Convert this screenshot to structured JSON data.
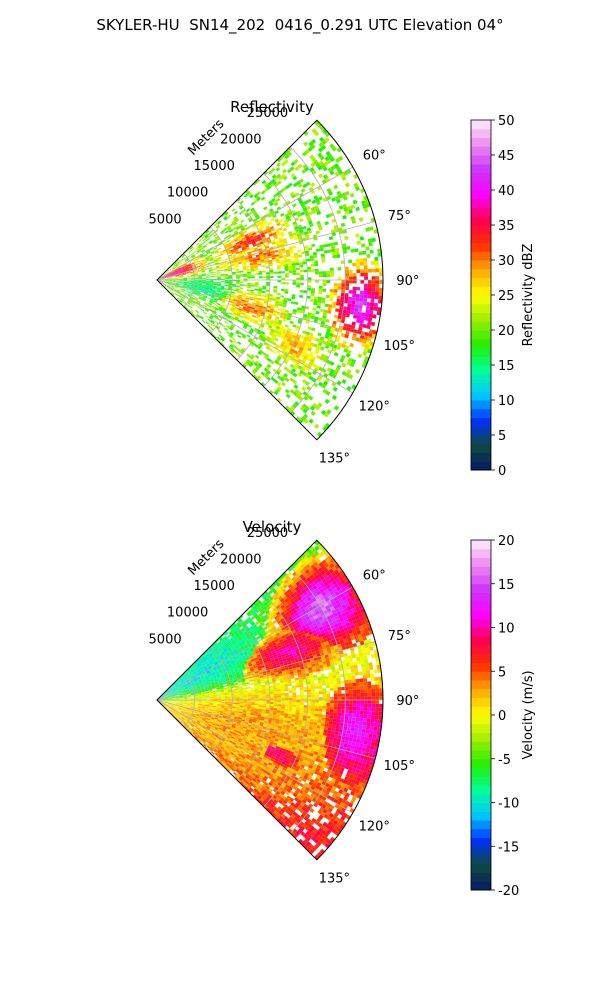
{
  "figure": {
    "title": "SKYLER-HU  SN14_202  0416_0.291 UTC Elevation 04°"
  },
  "colors": {
    "axis": "#000000",
    "grid": "#b0b0b0",
    "background": "#ffffff"
  },
  "chart_data": [
    {
      "type": "heatmap",
      "projection": "polar-sector",
      "title": "Reflectivity",
      "radial_label": "Meters",
      "radial_ticks": [
        5000,
        10000,
        15000,
        20000,
        25000
      ],
      "angle_ticks": [
        "60°",
        "75°",
        "90°",
        "105°",
        "120°",
        "135°"
      ],
      "angle_range_deg": [
        45,
        135
      ],
      "range_max_m": 30000,
      "grid": true,
      "colorbar": {
        "label": "Reflectivity dBZ",
        "ticks": [
          0,
          5,
          10,
          15,
          20,
          25,
          30,
          35,
          40,
          45,
          50
        ],
        "range": [
          0,
          50
        ],
        "colormap": [
          "#061a66",
          "#0f4a3e",
          "#0030ff",
          "#00c8ff",
          "#00ff9a",
          "#22ee00",
          "#99ee00",
          "#ffff00",
          "#ffaa00",
          "#ff3000",
          "#ff0050",
          "#ff00ff",
          "#cc33ff",
          "#ee88ee",
          "#ffeeff"
        ]
      },
      "features": [
        {
          "name": "near-range cluster",
          "azimuth_deg": [
            60,
            80
          ],
          "range_m": [
            0,
            5000
          ],
          "dbz": 38
        },
        {
          "name": "band north",
          "azimuth_deg": [
            63,
            72
          ],
          "range_m": [
            10000,
            17000
          ],
          "dbz": 33
        },
        {
          "name": "band center",
          "azimuth_deg": [
            72,
            82
          ],
          "range_m": [
            10000,
            18000
          ],
          "dbz": 30
        },
        {
          "name": "east cell",
          "azimuth_deg": [
            88,
            106
          ],
          "range_m": [
            25000,
            29500
          ],
          "dbz": 42
        },
        {
          "name": "south cell",
          "azimuth_deg": [
            100,
            112
          ],
          "range_m": [
            10000,
            16000
          ],
          "dbz": 30
        },
        {
          "name": "far south patch",
          "azimuth_deg": [
            112,
            120
          ],
          "range_m": [
            18000,
            23000
          ],
          "dbz": 28
        },
        {
          "name": "west area",
          "azimuth_deg": [
            90,
            110
          ],
          "range_m": [
            3000,
            9000
          ],
          "dbz": 15
        }
      ]
    },
    {
      "type": "heatmap",
      "projection": "polar-sector",
      "title": "Velocity",
      "radial_label": "Meters",
      "radial_ticks": [
        5000,
        10000,
        15000,
        20000,
        25000
      ],
      "angle_ticks": [
        "60°",
        "75°",
        "90°",
        "105°",
        "120°",
        "135°"
      ],
      "angle_range_deg": [
        45,
        135
      ],
      "range_max_m": 30000,
      "grid": true,
      "colorbar": {
        "label": "Velocity (m/s)",
        "ticks": [
          -20,
          -15,
          -10,
          -5,
          0,
          5,
          10,
          15,
          20
        ],
        "range": [
          -20,
          20
        ],
        "colormap": [
          "#061a66",
          "#0f4a3e",
          "#0030ff",
          "#00c8ff",
          "#00ff9a",
          "#22ee00",
          "#99ee00",
          "#ffff00",
          "#ffaa00",
          "#ff3000",
          "#ff0050",
          "#ff00ff",
          "#cc33ff",
          "#ee88ee",
          "#ffeeff"
        ]
      },
      "features": [
        {
          "name": "inbound near north",
          "azimuth_deg": [
            45,
            75
          ],
          "range_m": [
            0,
            14000
          ],
          "velocity_ms": -10
        },
        {
          "name": "outbound far north",
          "azimuth_deg": [
            50,
            72
          ],
          "range_m": [
            20000,
            30000
          ],
          "velocity_ms": 16
        },
        {
          "name": "band north",
          "azimuth_deg": [
            62,
            78
          ],
          "range_m": [
            13000,
            24000
          ],
          "velocity_ms": 10
        },
        {
          "name": "east cell",
          "azimuth_deg": [
            88,
            110
          ],
          "range_m": [
            24000,
            29500
          ],
          "velocity_ms": 13
        },
        {
          "name": "general south",
          "azimuth_deg": [
            85,
            130
          ],
          "range_m": [
            2000,
            22000
          ],
          "velocity_ms": 3
        },
        {
          "name": "south patch",
          "azimuth_deg": [
            110,
            118
          ],
          "range_m": [
            15000,
            20000
          ],
          "velocity_ms": 9
        }
      ]
    }
  ]
}
